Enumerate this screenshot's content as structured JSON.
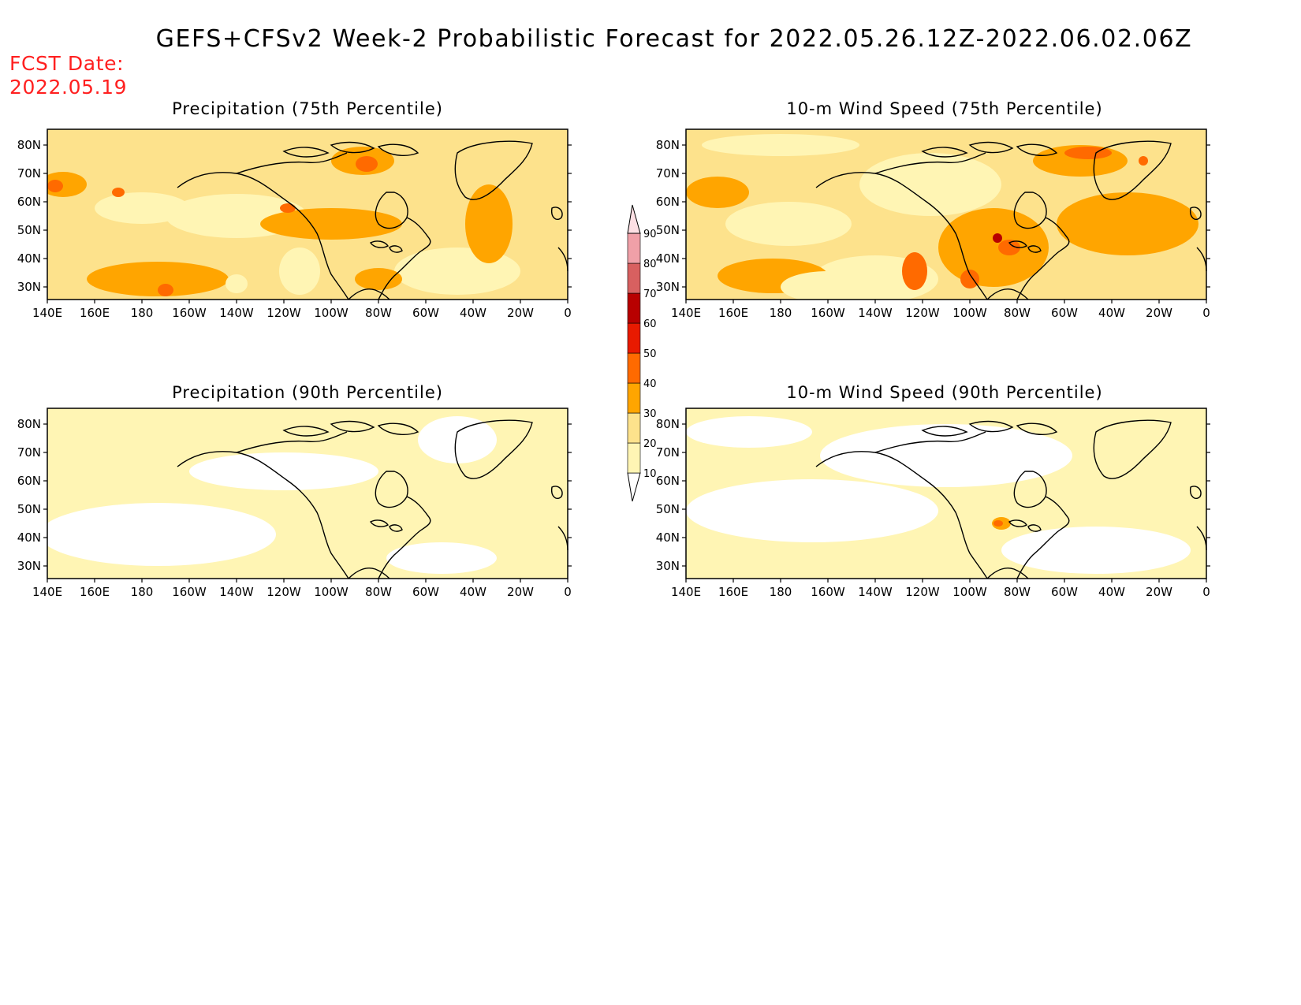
{
  "title": "GEFS+CFSv2 Week-2 Probabilistic Forecast for 2022.05.26.12Z-2022.06.02.06Z",
  "fcst_date": {
    "label": "FCST Date:",
    "value": "2022.05.19"
  },
  "panels": [
    {
      "id": "precip75",
      "title": "Precipitation (75th Percentile)"
    },
    {
      "id": "wind75",
      "title": "10-m Wind Speed (75th Percentile)"
    },
    {
      "id": "precip90",
      "title": "Precipitation (90th Percentile)"
    },
    {
      "id": "wind90",
      "title": "10-m Wind Speed (90th Percentile)"
    }
  ],
  "lat_labels": [
    "80N",
    "70N",
    "60N",
    "50N",
    "40N",
    "30N"
  ],
  "lon_labels": [
    "140E",
    "160E",
    "180",
    "160W",
    "140W",
    "120W",
    "100W",
    "80W",
    "60W",
    "40W",
    "20W",
    "0"
  ],
  "colorbar": {
    "levels": [
      "10",
      "20",
      "30",
      "40",
      "50",
      "60",
      "70",
      "80",
      "90"
    ],
    "colors": [
      "#fff5b4",
      "#fde28c",
      "#ffa500",
      "#ff6a00",
      "#e81a00",
      "#b80000",
      "#d86060",
      "#f0a0a8",
      "#fde0e4"
    ]
  },
  "colors": {
    "title": "#000000",
    "fcst": "#ff2020"
  }
}
